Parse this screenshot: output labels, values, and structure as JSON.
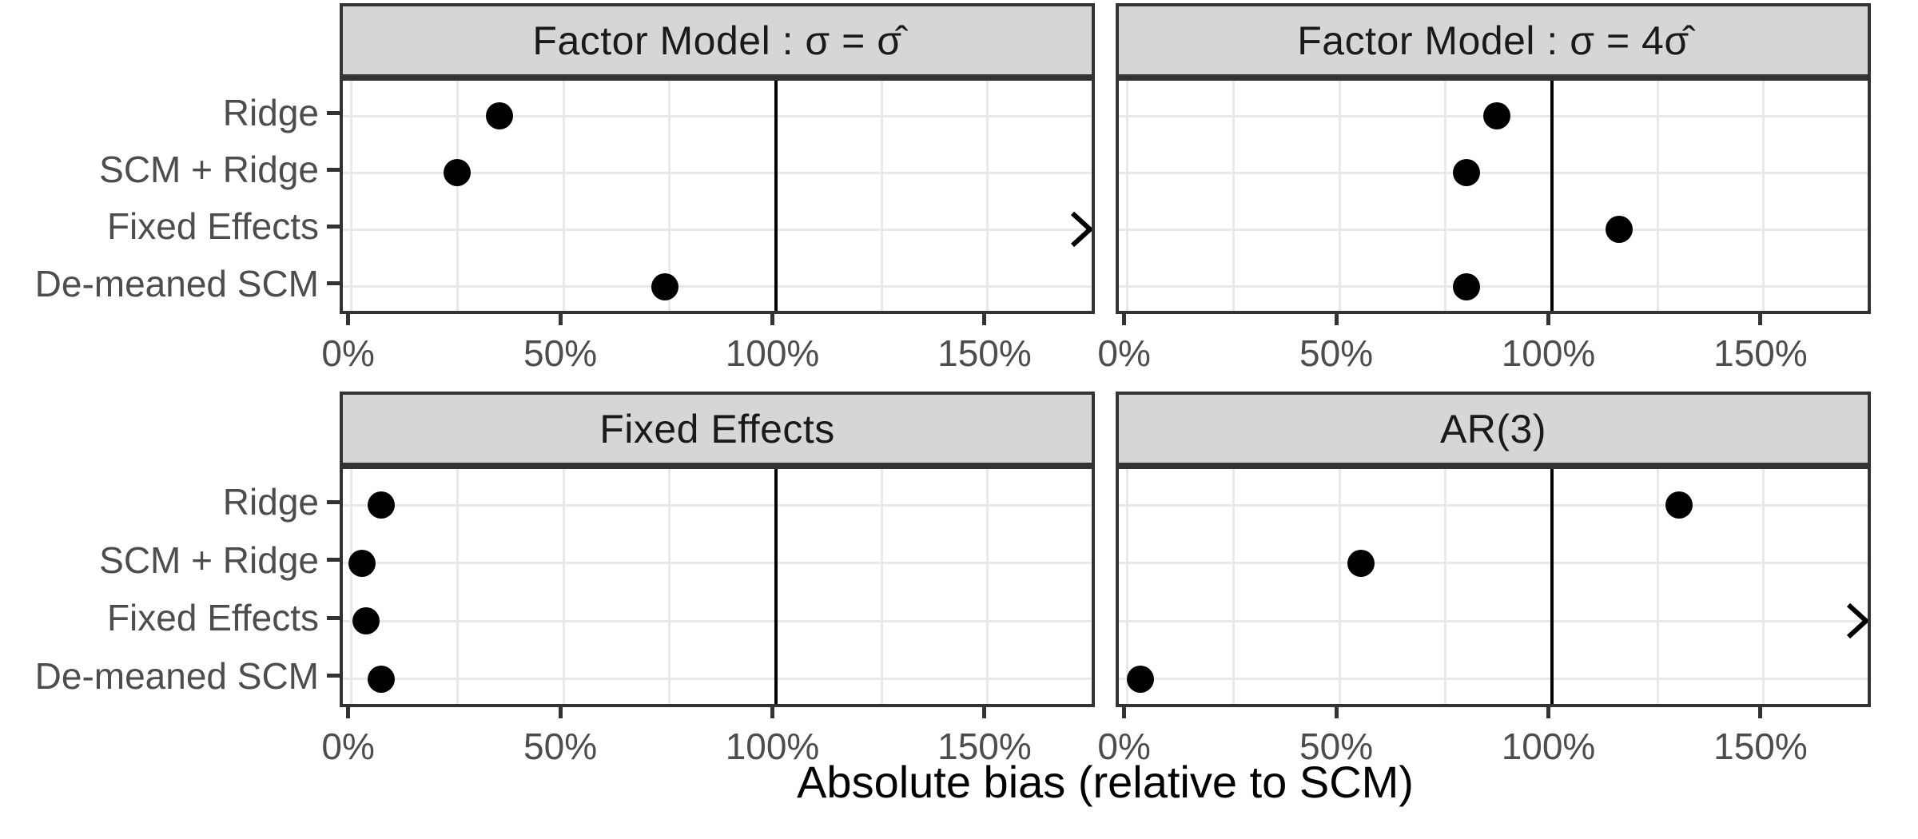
{
  "figure": {
    "caption": "Absolute bias (relative to SCM)"
  },
  "palette": {
    "point": "#000000",
    "strip_fill": "#d6d6d6",
    "panel_border": "#333333",
    "gridline": "#e9e9e9",
    "axis_text": "#4d4d4d",
    "reference_line": "#000000",
    "background": "#ffffff"
  },
  "chart_data": {
    "type": "scatter",
    "layout": "2x2_facets",
    "title": "",
    "xlabel": "Absolute bias (relative to SCM)",
    "ylabel": "",
    "categories": [
      "Ridge",
      "SCM + Ridge",
      "Fixed Effects",
      "De-meaned SCM"
    ],
    "x_tick_labels": [
      "0%",
      "50%",
      "100%",
      "150%"
    ],
    "x_tick_values": [
      0,
      50,
      100,
      150
    ],
    "x_minor_values": [
      25,
      75,
      125,
      175
    ],
    "xlim": [
      -2,
      176
    ],
    "x_unit": "percent",
    "grid": "on",
    "legend": "none",
    "reference_line_x": 100,
    "offscale_marker": ">",
    "offscale_meaning": "value beyond right axis limit",
    "facets": [
      {
        "title": "Factor Model :  σ = σ̂",
        "values": [
          35,
          25,
          "offscale",
          74
        ]
      },
      {
        "title": "Factor Model :  σ = 4σ̂",
        "values": [
          87,
          80,
          116,
          80
        ]
      },
      {
        "title": "Fixed Effects",
        "values": [
          7,
          2.5,
          3.5,
          7
        ]
      },
      {
        "title": "AR(3)",
        "values": [
          130,
          55,
          "offscale",
          3
        ]
      }
    ]
  }
}
